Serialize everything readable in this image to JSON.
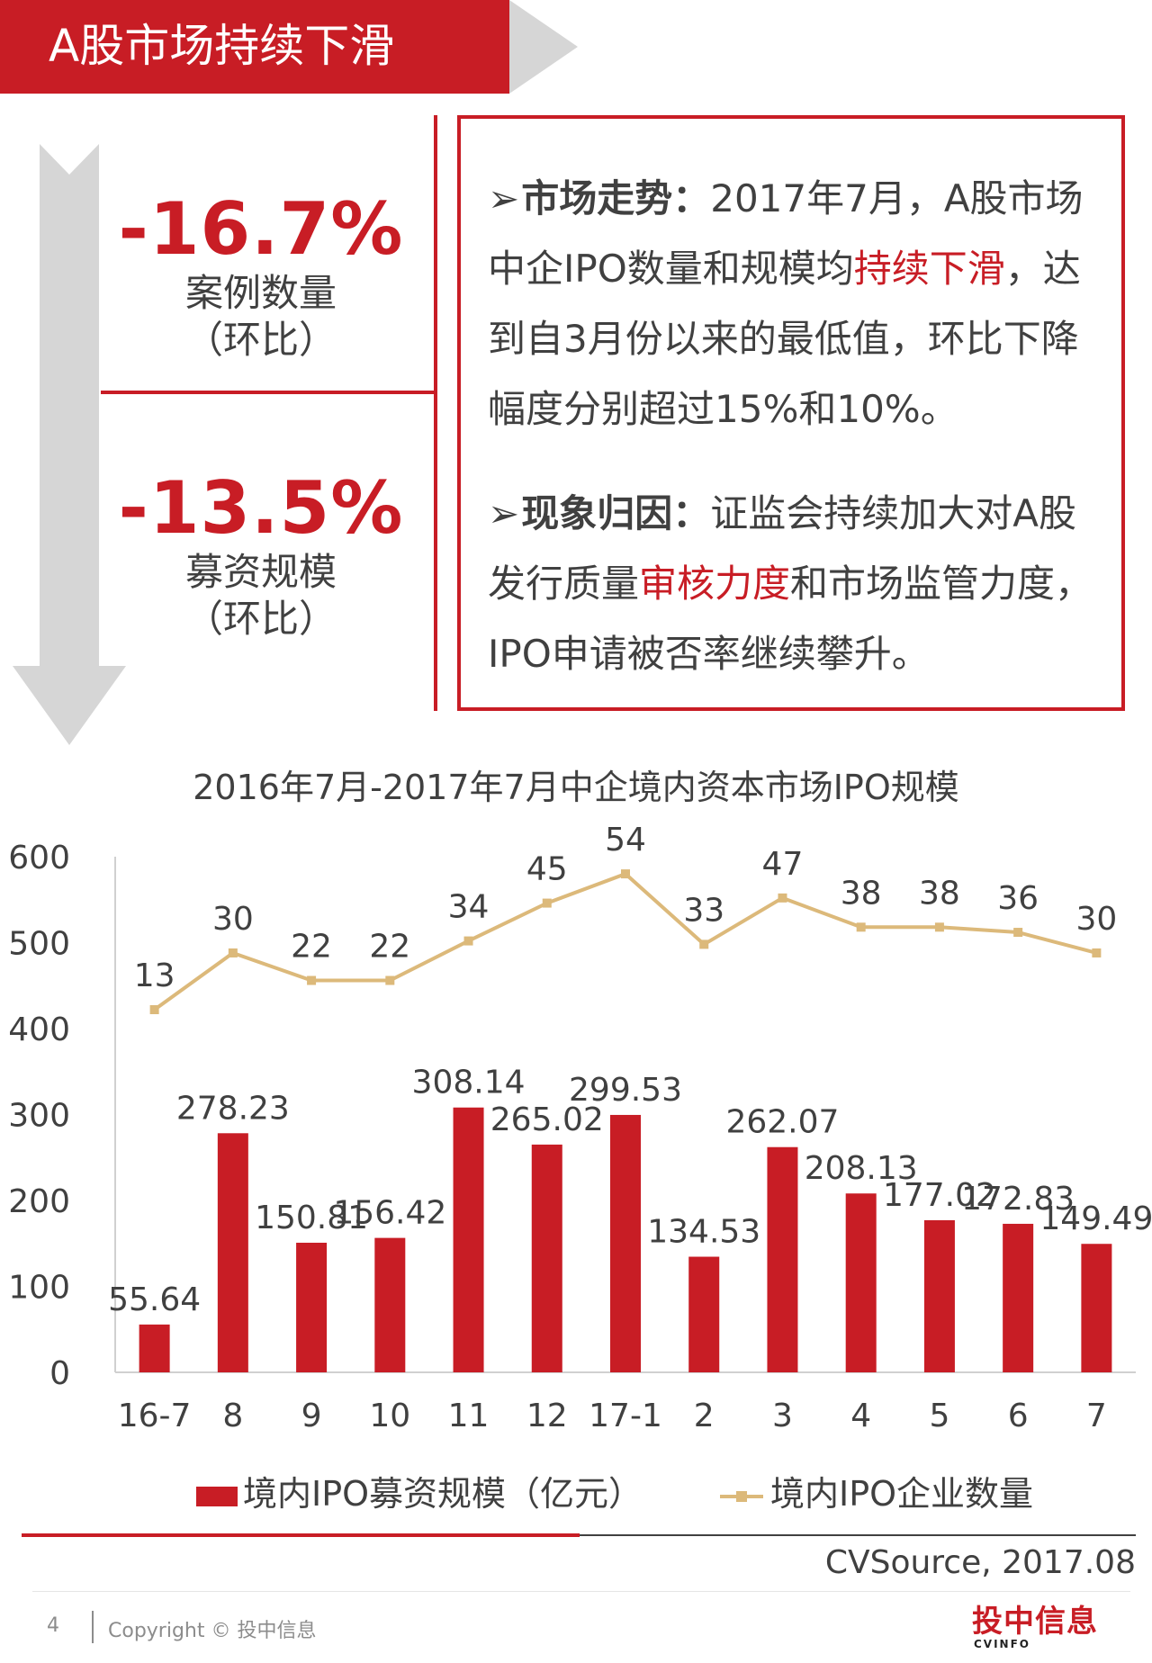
{
  "header": {
    "title": "A股市场持续下滑"
  },
  "summary": {
    "kpis": [
      {
        "value": "-16.7%",
        "label": "案例数量",
        "sub": "（环比）"
      },
      {
        "value": "-13.5%",
        "label": "募资规模",
        "sub": "（环比）"
      }
    ]
  },
  "analysis": {
    "para1": {
      "bullet": "➢",
      "lead": "市场走势：",
      "text_a": "2017年7月，A股市场中企IPO数量和规模均",
      "highlight": "持续下滑",
      "text_b": "，达到自3月份以来的最低值，环比下降幅度分别超过15%和10%。"
    },
    "para2": {
      "bullet": "➢",
      "lead": "现象归因：",
      "text_a": "证监会持续加大对A股发行质量",
      "highlight": "审核力度",
      "text_b": "和市场监管力度，IPO申请被否率继续攀升。"
    }
  },
  "colors": {
    "accent": "#c81d25",
    "line": "#dcb97a",
    "arrow": "#d6d6d6"
  },
  "chart_data": {
    "type": "bar",
    "title": "2016年7月-2017年7月中企境内资本市场IPO规模",
    "categories": [
      "16-7",
      "8",
      "9",
      "10",
      "11",
      "12",
      "17-1",
      "2",
      "3",
      "4",
      "5",
      "6",
      "7"
    ],
    "ylim": [
      0,
      600
    ],
    "yticks": [
      "0",
      "100",
      "200",
      "300",
      "400",
      "500",
      "600"
    ],
    "series": [
      {
        "name": "境内IPO募资规模（亿元）",
        "type": "bar",
        "values": [
          55.64,
          278.23,
          150.81,
          156.42,
          308.14,
          265.02,
          299.53,
          134.53,
          262.07,
          208.13,
          177.02,
          172.83,
          149.49
        ],
        "labels": [
          "55.64",
          "278.23",
          "150.81",
          "156.42",
          "308.14",
          "265.02",
          "299.53",
          "134.53",
          "262.07",
          "208.13",
          "177.02",
          "172.83",
          "149.49"
        ]
      },
      {
        "name": "境内IPO企业数量",
        "type": "line",
        "values": [
          13,
          30,
          22,
          22,
          34,
          45,
          54,
          33,
          47,
          38,
          38,
          36,
          30
        ],
        "plot_y": [
          422,
          488,
          456,
          456,
          502,
          546,
          580,
          498,
          552,
          518,
          518,
          512,
          488
        ],
        "labels": [
          "13",
          "30",
          "22",
          "22",
          "34",
          "45",
          "54",
          "33",
          "47",
          "38",
          "38",
          "36",
          "30"
        ]
      }
    ],
    "legend_position": "bottom",
    "grid": false
  },
  "source": "CVSource, 2017.08",
  "footer": {
    "page": "4",
    "copyright": "Copyright © 投中信息",
    "logo": "投中信息",
    "logo_sub": "CVINFO"
  }
}
